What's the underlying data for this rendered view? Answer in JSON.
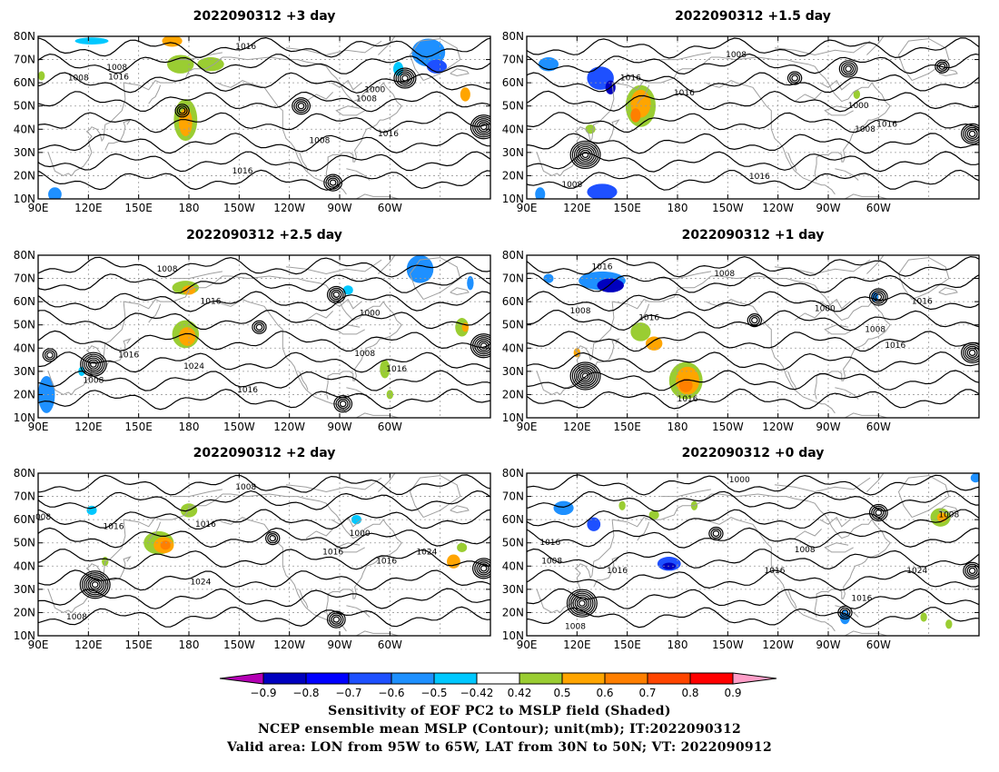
{
  "panels": [
    {
      "title": "2022090312 +3 day",
      "contour_labels": [
        {
          "text": "1016",
          "lon": 214,
          "lat": 75.5
        },
        {
          "text": "1008",
          "lon": 137,
          "lat": 66.5
        },
        {
          "text": "1008",
          "lon": 114,
          "lat": 62
        },
        {
          "text": "1016",
          "lon": 138,
          "lat": 62.5
        },
        {
          "text": "1000",
          "lon": 291,
          "lat": 57
        },
        {
          "text": "1008",
          "lon": 286,
          "lat": 53
        },
        {
          "text": "1016",
          "lon": 299,
          "lat": 38
        },
        {
          "text": "1008",
          "lon": 258,
          "lat": 35
        },
        {
          "text": "1016",
          "lon": 212,
          "lat": 22
        }
      ],
      "highs": [],
      "lows": [
        {
          "lon": 309,
          "lat": 62,
          "rings": 5
        },
        {
          "lon": 247,
          "lat": 50,
          "rings": 4
        },
        {
          "lon": 176,
          "lat": 48,
          "rings": 3
        },
        {
          "lon": 356,
          "lat": 41,
          "rings": 6
        },
        {
          "lon": 266,
          "lat": 17,
          "rings": 4
        }
      ],
      "shading": [
        {
          "lon": 170,
          "lat": 78,
          "rlon": 6,
          "rlat": 2.5,
          "level": 0.6
        },
        {
          "lon": 175,
          "lat": 68,
          "rlon": 8,
          "rlat": 4,
          "level": 0.5
        },
        {
          "lon": 193,
          "lat": 68,
          "rlon": 8,
          "rlat": 3,
          "level": 0.5
        },
        {
          "lon": 178,
          "lat": 44,
          "rlon": 7,
          "rlat": 9,
          "level": 0.5
        },
        {
          "lon": 178,
          "lat": 43,
          "rlon": 4,
          "rlat": 6,
          "level": 0.6
        },
        {
          "lon": 122,
          "lat": 78,
          "rlon": 10,
          "rlat": 1.5,
          "level": -0.5
        },
        {
          "lon": 323,
          "lat": 73,
          "rlon": 10,
          "rlat": 6,
          "level": -0.6
        },
        {
          "lon": 328,
          "lat": 67,
          "rlon": 6,
          "rlat": 3,
          "level": -0.7
        },
        {
          "lon": 305,
          "lat": 66,
          "rlon": 3,
          "rlat": 3,
          "level": -0.5
        },
        {
          "lon": 100,
          "lat": 12,
          "rlon": 4,
          "rlat": 3,
          "level": -0.6
        },
        {
          "lon": 345,
          "lat": 55,
          "rlon": 3,
          "rlat": 3,
          "level": 0.6
        },
        {
          "lon": 92,
          "lat": 63,
          "rlon": 2,
          "rlat": 2,
          "level": 0.5
        }
      ]
    },
    {
      "title": "2022090312 +1.5 day",
      "contour_labels": [
        {
          "text": "1008",
          "lon": 215,
          "lat": 72
        },
        {
          "text": "1016",
          "lon": 152,
          "lat": 62
        },
        {
          "text": "1016",
          "lon": 184,
          "lat": 55.5
        },
        {
          "text": "1000",
          "lon": 288,
          "lat": 50
        },
        {
          "text": "1016",
          "lon": 305,
          "lat": 42
        },
        {
          "text": "1008",
          "lon": 292,
          "lat": 40
        },
        {
          "text": "1016",
          "lon": 229,
          "lat": 19.5
        },
        {
          "text": "1008",
          "lon": 117,
          "lat": 16
        }
      ],
      "highs": [],
      "lows": [
        {
          "lon": 125,
          "lat": 29,
          "rings": 7
        },
        {
          "lon": 282,
          "lat": 66,
          "rings": 4
        },
        {
          "lon": 250,
          "lat": 62,
          "rings": 3
        },
        {
          "lon": 338,
          "lat": 67,
          "rings": 3
        },
        {
          "lon": 356,
          "lat": 38,
          "rings": 5
        }
      ],
      "shading": [
        {
          "lon": 103,
          "lat": 68,
          "rlon": 6,
          "rlat": 3,
          "level": -0.6
        },
        {
          "lon": 134,
          "lat": 62,
          "rlon": 8,
          "rlat": 5,
          "level": -0.7
        },
        {
          "lon": 140,
          "lat": 58,
          "rlon": 3,
          "rlat": 3,
          "level": -0.8
        },
        {
          "lon": 135,
          "lat": 13,
          "rlon": 9,
          "rlat": 3.5,
          "level": -0.7
        },
        {
          "lon": 98,
          "lat": 12,
          "rlon": 3,
          "rlat": 3,
          "level": -0.6
        },
        {
          "lon": 158,
          "lat": 50,
          "rlon": 9,
          "rlat": 9,
          "level": 0.5
        },
        {
          "lon": 158,
          "lat": 51,
          "rlon": 6,
          "rlat": 6,
          "level": 0.6
        },
        {
          "lon": 155,
          "lat": 46,
          "rlon": 3,
          "rlat": 3,
          "level": 0.7
        },
        {
          "lon": 128,
          "lat": 40,
          "rlon": 3,
          "rlat": 2,
          "level": 0.5
        },
        {
          "lon": 287,
          "lat": 55,
          "rlon": 2,
          "rlat": 2,
          "level": 0.5
        }
      ]
    },
    {
      "title": "2022090312 +2.5 day",
      "contour_labels": [
        {
          "text": "1008",
          "lon": 167,
          "lat": 74
        },
        {
          "text": "1016",
          "lon": 193,
          "lat": 60
        },
        {
          "text": "1000",
          "lon": 288,
          "lat": 55
        },
        {
          "text": "1016",
          "lon": 144,
          "lat": 37
        },
        {
          "text": "1024",
          "lon": 183,
          "lat": 32
        },
        {
          "text": "1008",
          "lon": 123,
          "lat": 26
        },
        {
          "text": "1008",
          "lon": 285,
          "lat": 37.5
        },
        {
          "text": "1016",
          "lon": 304,
          "lat": 31
        },
        {
          "text": "1016",
          "lon": 215,
          "lat": 22
        }
      ],
      "highs": [],
      "lows": [
        {
          "lon": 123,
          "lat": 33,
          "rings": 6
        },
        {
          "lon": 272,
          "lat": 16,
          "rings": 4
        },
        {
          "lon": 356,
          "lat": 41,
          "rings": 6
        },
        {
          "lon": 268,
          "lat": 63,
          "rings": 4
        },
        {
          "lon": 222,
          "lat": 49,
          "rings": 3
        },
        {
          "lon": 97,
          "lat": 37,
          "rings": 3
        }
      ],
      "shading": [
        {
          "lon": 178,
          "lat": 66,
          "rlon": 8,
          "rlat": 3,
          "level": 0.5
        },
        {
          "lon": 180,
          "lat": 65,
          "rlon": 4,
          "rlat": 2,
          "level": 0.6
        },
        {
          "lon": 178,
          "lat": 46,
          "rlon": 8,
          "rlat": 6,
          "level": 0.5
        },
        {
          "lon": 179,
          "lat": 45,
          "rlon": 5,
          "rlat": 4,
          "level": 0.6
        },
        {
          "lon": 318,
          "lat": 74,
          "rlon": 8,
          "rlat": 6,
          "level": -0.6
        },
        {
          "lon": 275,
          "lat": 65,
          "rlon": 3,
          "rlat": 2,
          "level": -0.5
        },
        {
          "lon": 95,
          "lat": 20,
          "rlon": 5,
          "rlat": 8,
          "level": -0.6
        },
        {
          "lon": 116,
          "lat": 30,
          "rlon": 2,
          "rlat": 2,
          "level": -0.5
        },
        {
          "lon": 343,
          "lat": 49,
          "rlon": 4,
          "rlat": 4,
          "level": 0.5
        },
        {
          "lon": 345,
          "lat": 49,
          "rlon": 2,
          "rlat": 2,
          "level": 0.6
        },
        {
          "lon": 297,
          "lat": 31,
          "rlon": 3,
          "rlat": 4,
          "level": 0.5
        },
        {
          "lon": 300,
          "lat": 20,
          "rlon": 2,
          "rlat": 2,
          "level": 0.5
        },
        {
          "lon": 348,
          "lat": 68,
          "rlon": 2,
          "rlat": 3,
          "level": -0.6
        }
      ]
    },
    {
      "title": "2022090312 +1 day",
      "contour_labels": [
        {
          "text": "1016",
          "lon": 135,
          "lat": 75
        },
        {
          "text": "1008",
          "lon": 208,
          "lat": 72
        },
        {
          "text": "1008",
          "lon": 122,
          "lat": 56
        },
        {
          "text": "1016",
          "lon": 163,
          "lat": 53
        },
        {
          "text": "1000",
          "lon": 268,
          "lat": 57
        },
        {
          "text": "1016",
          "lon": 326,
          "lat": 60
        },
        {
          "text": "1008",
          "lon": 298,
          "lat": 48
        },
        {
          "text": "1016",
          "lon": 310,
          "lat": 41
        },
        {
          "text": "1016",
          "lon": 186,
          "lat": 18
        }
      ],
      "highs": [],
      "lows": [
        {
          "lon": 125,
          "lat": 28,
          "rings": 7
        },
        {
          "lon": 356,
          "lat": 38,
          "rings": 5
        },
        {
          "lon": 300,
          "lat": 62,
          "rings": 4
        },
        {
          "lon": 226,
          "lat": 52,
          "rings": 3
        }
      ],
      "shading": [
        {
          "lon": 135,
          "lat": 69,
          "rlon": 14,
          "rlat": 4,
          "level": -0.6
        },
        {
          "lon": 140,
          "lat": 67,
          "rlon": 8,
          "rlat": 3,
          "level": -0.8
        },
        {
          "lon": 103,
          "lat": 70,
          "rlon": 3,
          "rlat": 2,
          "level": -0.6
        },
        {
          "lon": 185,
          "lat": 26,
          "rlon": 10,
          "rlat": 8,
          "level": 0.5
        },
        {
          "lon": 186,
          "lat": 26,
          "rlon": 7,
          "rlat": 6,
          "level": 0.6
        },
        {
          "lon": 185,
          "lat": 24,
          "rlon": 4,
          "rlat": 3,
          "level": 0.7
        },
        {
          "lon": 158,
          "lat": 47,
          "rlon": 6,
          "rlat": 4,
          "level": 0.5
        },
        {
          "lon": 166,
          "lat": 42,
          "rlon": 5,
          "rlat": 3,
          "level": 0.6
        },
        {
          "lon": 120,
          "lat": 38,
          "rlon": 2,
          "rlat": 2,
          "level": 0.6
        },
        {
          "lon": 298,
          "lat": 62,
          "rlon": 2,
          "rlat": 2,
          "level": -0.6
        }
      ]
    },
    {
      "title": "2022090312 +2 day",
      "contour_labels": [
        {
          "text": "1008",
          "lon": 214,
          "lat": 74
        },
        {
          "text": "1016",
          "lon": 135,
          "lat": 57
        },
        {
          "text": "1016",
          "lon": 190,
          "lat": 58
        },
        {
          "text": "1000",
          "lon": 282,
          "lat": 54
        },
        {
          "text": "1024",
          "lon": 322,
          "lat": 46
        },
        {
          "text": "1016",
          "lon": 266,
          "lat": 46
        },
        {
          "text": "1016",
          "lon": 298,
          "lat": 42
        },
        {
          "text": "1024",
          "lon": 187,
          "lat": 33
        },
        {
          "text": "1008",
          "lon": 113,
          "lat": 18
        },
        {
          "text": "008",
          "lon": 93,
          "lat": 61
        }
      ],
      "highs": [],
      "lows": [
        {
          "lon": 124,
          "lat": 32,
          "rings": 7
        },
        {
          "lon": 356,
          "lat": 39,
          "rings": 5
        },
        {
          "lon": 268,
          "lat": 17,
          "rings": 4
        },
        {
          "lon": 230,
          "lat": 52,
          "rings": 3
        }
      ],
      "shading": [
        {
          "lon": 162,
          "lat": 50,
          "rlon": 9,
          "rlat": 5,
          "level": 0.5
        },
        {
          "lon": 165,
          "lat": 49,
          "rlon": 6,
          "rlat": 3.5,
          "level": 0.6
        },
        {
          "lon": 166,
          "lat": 49,
          "rlon": 3,
          "rlat": 2,
          "level": 0.7
        },
        {
          "lon": 180,
          "lat": 64,
          "rlon": 5,
          "rlat": 3,
          "level": 0.5
        },
        {
          "lon": 338,
          "lat": 42,
          "rlon": 4,
          "rlat": 3,
          "level": 0.6
        },
        {
          "lon": 343,
          "lat": 48,
          "rlon": 3,
          "rlat": 2,
          "level": 0.5
        },
        {
          "lon": 122,
          "lat": 64,
          "rlon": 3,
          "rlat": 2,
          "level": -0.5
        },
        {
          "lon": 280,
          "lat": 60,
          "rlon": 3,
          "rlat": 2,
          "level": -0.5
        },
        {
          "lon": 130,
          "lat": 42,
          "rlon": 2,
          "rlat": 2,
          "level": 0.5
        }
      ]
    },
    {
      "title": "2022090312 +0 day",
      "contour_labels": [
        {
          "text": "1000",
          "lon": 217,
          "lat": 77
        },
        {
          "text": "1008",
          "lon": 342,
          "lat": 62
        },
        {
          "text": "1016",
          "lon": 104,
          "lat": 50
        },
        {
          "text": "1008",
          "lon": 105,
          "lat": 42
        },
        {
          "text": "1016",
          "lon": 144,
          "lat": 38
        },
        {
          "text": "1016",
          "lon": 238,
          "lat": 38
        },
        {
          "text": "1008",
          "lon": 256,
          "lat": 47
        },
        {
          "text": "1024",
          "lon": 323,
          "lat": 38
        },
        {
          "text": "1016",
          "lon": 290,
          "lat": 26
        },
        {
          "text": "1008",
          "lon": 119,
          "lat": 14
        }
      ],
      "highs": [],
      "lows": [
        {
          "lon": 123,
          "lat": 24,
          "rings": 7
        },
        {
          "lon": 356,
          "lat": 38,
          "rings": 4
        },
        {
          "lon": 300,
          "lat": 63,
          "rings": 4
        },
        {
          "lon": 280,
          "lat": 20,
          "rings": 3
        },
        {
          "lon": 203,
          "lat": 54,
          "rings": 3
        }
      ],
      "shading": [
        {
          "lon": 175,
          "lat": 41,
          "rlon": 7,
          "rlat": 3,
          "level": -0.7
        },
        {
          "lon": 175,
          "lat": 40,
          "rlon": 4,
          "rlat": 1.5,
          "level": -0.8
        },
        {
          "lon": 112,
          "lat": 65,
          "rlon": 6,
          "rlat": 3,
          "level": -0.6
        },
        {
          "lon": 130,
          "lat": 58,
          "rlon": 4,
          "rlat": 3,
          "level": -0.7
        },
        {
          "lon": 337,
          "lat": 61,
          "rlon": 6,
          "rlat": 4,
          "level": 0.5
        },
        {
          "lon": 338,
          "lat": 61,
          "rlon": 3,
          "rlat": 2,
          "level": 0.6
        },
        {
          "lon": 280,
          "lat": 18,
          "rlon": 3,
          "rlat": 3,
          "level": -0.6
        },
        {
          "lon": 358,
          "lat": 78,
          "rlon": 3,
          "rlat": 2,
          "level": -0.6
        },
        {
          "lon": 342,
          "lat": 15,
          "rlon": 2,
          "rlat": 2,
          "level": 0.5
        },
        {
          "lon": 327,
          "lat": 18,
          "rlon": 2,
          "rlat": 2,
          "level": 0.5
        },
        {
          "lon": 166,
          "lat": 62,
          "rlon": 3,
          "rlat": 2,
          "level": 0.5
        },
        {
          "lon": 147,
          "lat": 66,
          "rlon": 2,
          "rlat": 2,
          "level": 0.5
        },
        {
          "lon": 190,
          "lat": 66,
          "rlon": 2,
          "rlat": 2,
          "level": 0.5
        }
      ]
    }
  ],
  "axes": {
    "lon_range": [
      90,
      360
    ],
    "lat_range": [
      10,
      80
    ],
    "lon_ticks": [
      {
        "value": 90,
        "label": "90E"
      },
      {
        "value": 120,
        "label": "120E"
      },
      {
        "value": 150,
        "label": "150E"
      },
      {
        "value": 180,
        "label": "180"
      },
      {
        "value": 210,
        "label": "150W"
      },
      {
        "value": 240,
        "label": "120W"
      },
      {
        "value": 270,
        "label": "90W"
      },
      {
        "value": 300,
        "label": "60W"
      }
    ],
    "lat_ticks": [
      {
        "value": 10,
        "label": "10N"
      },
      {
        "value": 20,
        "label": "20N"
      },
      {
        "value": 30,
        "label": "30N"
      },
      {
        "value": 40,
        "label": "40N"
      },
      {
        "value": 50,
        "label": "50N"
      },
      {
        "value": 60,
        "label": "60N"
      },
      {
        "value": 70,
        "label": "70N"
      },
      {
        "value": 80,
        "label": "80N"
      }
    ]
  },
  "colorbar": {
    "levels": [
      "−0.9",
      "−0.8",
      "−0.7",
      "−0.6",
      "−0.5",
      "−0.42",
      "0.42",
      "0.5",
      "0.6",
      "0.7",
      "0.8",
      "0.9"
    ],
    "colors": [
      "#0000bf",
      "#0000ff",
      "#1e50ff",
      "#1e90ff",
      "#00c8ff",
      "#ffffff",
      "#9acd32",
      "#ffa500",
      "#ff7f00",
      "#ff4500",
      "#ff0000"
    ],
    "low_extend_color": "#b400b4",
    "high_extend_color": "#ff9ec8"
  },
  "shade_colors": {
    "-0.8": "#0000bf",
    "-0.7": "#1e50ff",
    "-0.6": "#1e90ff",
    "-0.5": "#00c8ff",
    "0.5": "#9acd32",
    "0.6": "#ffa500",
    "0.7": "#ff7f00",
    "0.8": "#ff4500"
  },
  "caption": {
    "line1": "Sensitivity of EOF PC2 to MSLP field (Shaded)",
    "line2": "NCEP ensemble mean MSLP (Contour); unit(mb); IT:2022090312",
    "line3": "Valid area: LON from 95W to 65W, LAT from 30N to 50N; VT: 2022090912"
  }
}
